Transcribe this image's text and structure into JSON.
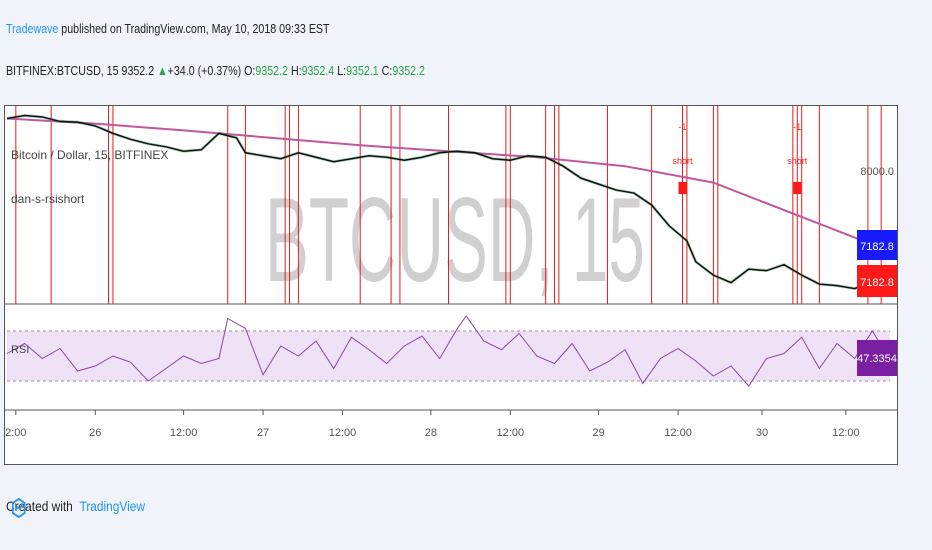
{
  "header": {
    "author": "Tradewave",
    "published_text": " published on TradingView.com, May 10, 2018 09:33 EST",
    "symbol": "BITFINEX:BTCUSD, 15",
    "last": "9352.2",
    "change": "+34.0 (+0.37%)",
    "o_label": "O:",
    "o_value": "9352.2",
    "h_label": "H:",
    "h_value": "9352.4",
    "l_label": "L:",
    "l_value": "9352.1",
    "c_label": "C:",
    "c_value": "9352.2"
  },
  "footer": {
    "created_with": "Created with",
    "brand": "TradingView"
  },
  "colors": {
    "price": "#111111",
    "ma": "#c2569f",
    "vline": "#e41a1c",
    "rsi": "#8e44ad",
    "rsi_band": "#efe1f6",
    "tag_blue": "#1a1aff",
    "tag_red": "#ff1a1a",
    "tag_purple": "#7b1fa2"
  },
  "chart_data": {
    "type": "line",
    "symbol_label": "Bitcoin / Dollar, 15, BITFINEX",
    "indicator_label": "dan-s-rsishort",
    "watermark": "BTCUSD, 15",
    "y_tick": "8000.0",
    "price_tags": [
      "7182.8",
      "7182.8"
    ],
    "x_ticks": [
      "2:00",
      "26",
      "12:00",
      "27",
      "12:00",
      "28",
      "12:00",
      "29",
      "12:00",
      "30",
      "12:00"
    ],
    "price_series": {
      "x": [
        0,
        0.02,
        0.04,
        0.06,
        0.08,
        0.1,
        0.12,
        0.14,
        0.16,
        0.18,
        0.2,
        0.22,
        0.24,
        0.26,
        0.27,
        0.29,
        0.31,
        0.33,
        0.35,
        0.37,
        0.39,
        0.41,
        0.43,
        0.45,
        0.47,
        0.49,
        0.51,
        0.53,
        0.55,
        0.57,
        0.59,
        0.61,
        0.63,
        0.65,
        0.67,
        0.69,
        0.71,
        0.73,
        0.75,
        0.77,
        0.78,
        0.8,
        0.82,
        0.84,
        0.86,
        0.88,
        0.9,
        0.92,
        0.94,
        0.96,
        0.98,
        1.0
      ],
      "y": [
        8280,
        8300,
        8290,
        8260,
        8255,
        8230,
        8180,
        8140,
        8110,
        8090,
        8060,
        8070,
        8180,
        8150,
        8050,
        8030,
        8010,
        8050,
        8020,
        7990,
        8010,
        8030,
        8020,
        8000,
        8020,
        8050,
        8060,
        8050,
        8010,
        8000,
        8030,
        8020,
        7960,
        7880,
        7840,
        7800,
        7780,
        7700,
        7560,
        7460,
        7320,
        7230,
        7180,
        7270,
        7260,
        7300,
        7230,
        7170,
        7160,
        7140,
        7190,
        7130
      ]
    },
    "ma_series": {
      "x": [
        0,
        0.1,
        0.2,
        0.3,
        0.4,
        0.5,
        0.6,
        0.7,
        0.8,
        0.9,
        1.0
      ],
      "y": [
        8280,
        8245,
        8200,
        8150,
        8100,
        8060,
        8020,
        7960,
        7850,
        7620,
        7390
      ]
    },
    "rsi_series": {
      "x": [
        0,
        0.02,
        0.04,
        0.06,
        0.08,
        0.1,
        0.12,
        0.14,
        0.16,
        0.18,
        0.2,
        0.22,
        0.24,
        0.25,
        0.27,
        0.29,
        0.31,
        0.33,
        0.35,
        0.37,
        0.39,
        0.41,
        0.43,
        0.45,
        0.47,
        0.49,
        0.51,
        0.52,
        0.54,
        0.56,
        0.58,
        0.6,
        0.62,
        0.64,
        0.66,
        0.68,
        0.7,
        0.72,
        0.74,
        0.76,
        0.78,
        0.8,
        0.82,
        0.84,
        0.86,
        0.88,
        0.9,
        0.92,
        0.94,
        0.96,
        0.98,
        1.0
      ],
      "y": [
        52,
        60,
        48,
        56,
        38,
        42,
        50,
        45,
        30,
        40,
        50,
        44,
        48,
        80,
        72,
        35,
        58,
        50,
        62,
        40,
        65,
        55,
        44,
        58,
        66,
        48,
        72,
        82,
        62,
        55,
        68,
        50,
        44,
        60,
        38,
        45,
        55,
        28,
        48,
        56,
        46,
        34,
        42,
        26,
        48,
        52,
        65,
        40,
        60,
        48,
        70,
        47
      ]
    },
    "rsi_value": "47.3354",
    "rsi_label": "RSI",
    "rsi_bands": [
      30,
      70
    ],
    "signals": [
      {
        "x": 0.765,
        "label": "short",
        "prefix": "-1"
      },
      {
        "x": 0.895,
        "label": "short",
        "prefix": "-1"
      }
    ],
    "vertical_lines_x": [
      0.01,
      0.05,
      0.115,
      0.12,
      0.25,
      0.27,
      0.315,
      0.32,
      0.33,
      0.4,
      0.435,
      0.445,
      0.5,
      0.565,
      0.57,
      0.61,
      0.62,
      0.625,
      0.68,
      0.73,
      0.765,
      0.77,
      0.8,
      0.805,
      0.89,
      0.895,
      0.9,
      0.92,
      0.975,
      0.99
    ]
  }
}
